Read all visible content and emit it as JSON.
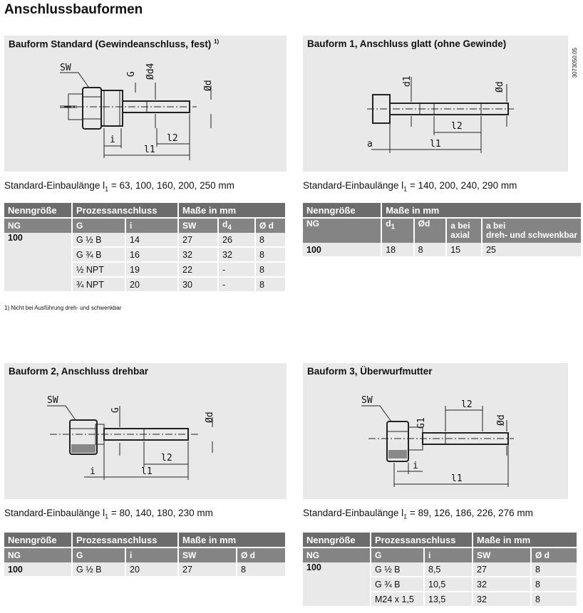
{
  "page_title": "Anschlussbauformen",
  "doc_number": "3073050.05",
  "panels": {
    "std": {
      "title": "Bauform Standard (Gewindeanschluss, fest)",
      "title_note": "1)",
      "labels": {
        "sw": "SW",
        "g": "G",
        "d4": "Ød4",
        "d": "Ød",
        "i": "i",
        "l2": "l2",
        "l1": "l1"
      }
    },
    "b1": {
      "title": "Bauform 1, Anschluss glatt (ohne Gewinde)",
      "labels": {
        "d1": "d1",
        "d": "Ød",
        "l2": "l2",
        "a": "a",
        "l1": "l1"
      }
    },
    "b2": {
      "title": "Bauform 2, Anschluss drehbar",
      "labels": {
        "sw": "SW",
        "g": "G",
        "d": "Ød",
        "l2": "l2",
        "i": "i",
        "l1": "l1"
      }
    },
    "b3": {
      "title": "Bauform 3, Überwurfmutter",
      "labels": {
        "sw": "SW",
        "g1": "G1",
        "l2": "l2",
        "d": "Ød",
        "i": "i",
        "l1": "l1"
      }
    }
  },
  "lengths": {
    "std": {
      "prefix": "Standard-Einbaulänge l",
      "sub": "1",
      "values": " = 63, 100, 160, 200, 250 mm"
    },
    "b1": {
      "prefix": "Standard-Einbaulänge l",
      "sub": "1",
      "values": " = 140, 200, 240, 290 mm"
    },
    "b2": {
      "prefix": "Standard-Einbaulänge l",
      "sub": "1",
      "values": " = 80, 140, 180, 230 mm"
    },
    "b3": {
      "prefix": "Standard-Einbaulänge l",
      "sub": "1",
      "values": " = 89, 126, 186, 226, 276 mm"
    }
  },
  "footnote": "1) Nicht bei Ausführung dreh- und schwenkbar",
  "tables": {
    "std": {
      "group_headers": [
        "Nenngröße",
        "Prozessanschluss",
        "Maße in mm"
      ],
      "columns": [
        "NG",
        "G",
        "i",
        "SW",
        "d4",
        "Ø d"
      ],
      "ng": "100",
      "rows": [
        [
          "G ½ B",
          "14",
          "27",
          "26",
          "8"
        ],
        [
          "G ¾ B",
          "16",
          "32",
          "32",
          "8"
        ],
        [
          "½ NPT",
          "19",
          "22",
          "-",
          "8"
        ],
        [
          "¾ NPT",
          "20",
          "30",
          "-",
          "8"
        ]
      ]
    },
    "b1": {
      "group_headers": [
        "Nenngröße",
        "Maße in mm"
      ],
      "columns": [
        "NG",
        "d1",
        "Ød",
        "a bei",
        "axial",
        "a bei",
        "dreh- und schwenkbar"
      ],
      "ng": "100",
      "rows": [
        [
          "18",
          "8",
          "15",
          "25"
        ]
      ]
    },
    "b2": {
      "group_headers": [
        "Nenngröße",
        "Prozessanschluss",
        "Maße in mm"
      ],
      "columns": [
        "NG",
        "G",
        "i",
        "SW",
        "Ø d"
      ],
      "ng": "100",
      "rows": [
        [
          "G ½ B",
          "20",
          "27",
          "8"
        ]
      ]
    },
    "b3": {
      "group_headers": [
        "Nenngröße",
        "Prozessanschluss",
        "Maße in mm"
      ],
      "columns": [
        "NG",
        "G",
        "i",
        "SW",
        "Ø d"
      ],
      "ng": "100",
      "rows": [
        [
          "G ½ B",
          "8,5",
          "27",
          "8"
        ],
        [
          "G ¾ B",
          "10,5",
          "32",
          "8"
        ],
        [
          "M24 x 1,5",
          "13,5",
          "32",
          "8"
        ]
      ]
    }
  }
}
